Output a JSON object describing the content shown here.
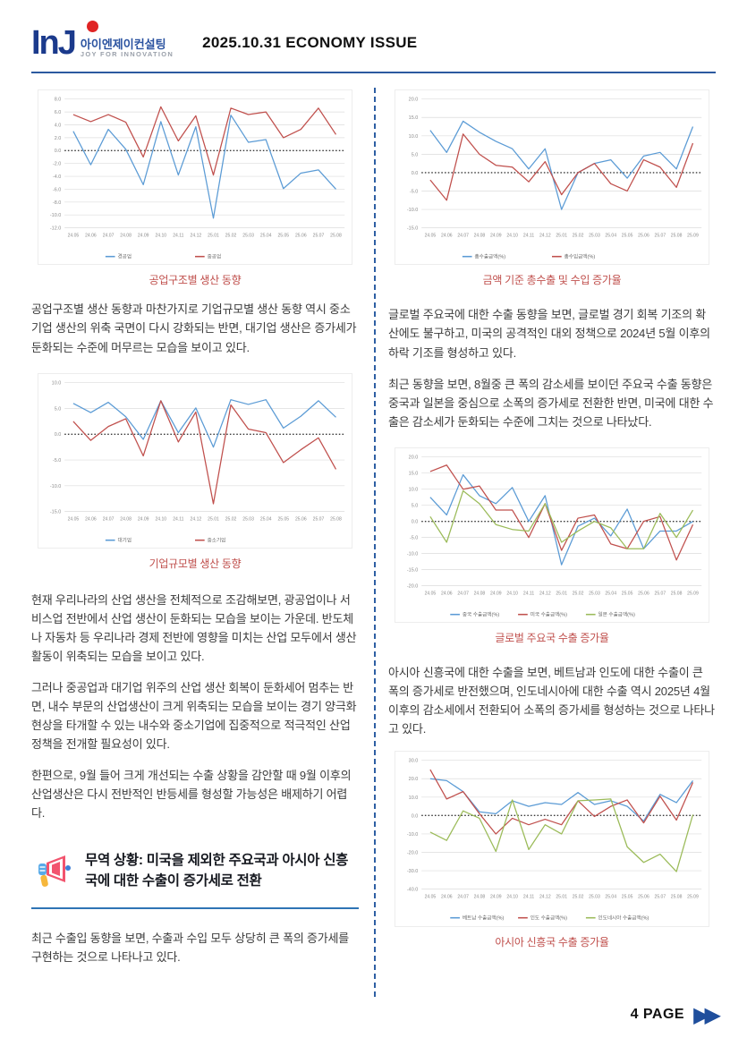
{
  "header": {
    "logo_main": "InJ",
    "logo_korean": "아이엔제이컨설팅",
    "logo_sub": "JOY FOR INNOVATION",
    "issue_title": "2025.10.31 ECONOMY ISSUE"
  },
  "left_column": {
    "chart1_caption": "공업구조별 생산 동향",
    "para1": "공업구조별 생산 동향과 마찬가지로 기업규모별 생산 동향 역시 중소기업 생산의 위축 국면이 다시 강화되는 반면, 대기업 생산은 증가세가 둔화되는 수준에 머무르는 모습을 보이고 있다.",
    "chart2_caption": "기업규모별 생산 동향",
    "para2": "현재 우리나라의 산업 생산을 전체적으로 조감해보면, 광공업이나 서비스업 전반에서 산업 생산이 둔화되는 모습을 보이는 가운데. 반도체나 자동차 등 우리나라 경제 전반에 영향을 미치는 산업 모두에서 생산 활동이 위축되는 모습을 보이고 있다.",
    "para3": "그러나 중공업과 대기업 위주의 산업 생산 회복이 둔화세어 멈추는 반면, 내수 부문의 산업생산이 크게 위축되는 모습을 보이는 경기 양극화 현상을 타개할 수 있는 내수와 중소기업에 집중적으로 적극적인 산업 정책을 전개할 필요성이 있다.",
    "para4": "한편으로, 9월 들어 크게 개선되는 수출 상황을 감안할 때 9월 이후의 산업생산은 다시 전반적인 반등세를 형성할 가능성은 배제하기 어렵다.",
    "callout_title": "무역 상황: 미국을 제외한 주요국과 아시아 신흥국에 대한 수출이 증가세로 전환",
    "para5": "최근 수출입 동향을 보면, 수출과 수입 모두 상당히 큰 폭의 증가세를 구현하는 것으로 나타나고 있다."
  },
  "right_column": {
    "chart3_caption": "금액 기준 총수출 및 수입 증가율",
    "para1": "글로벌 주요국에 대한 수출 동향을 보면, 글로벌 경기 회복 기조의 확산에도 불구하고, 미국의 공격적인 대외 정책으로 2024년 5월 이후의 하락 기조를 형성하고 있다.",
    "para2": "최근 동향을 보면, 8월중 큰 폭의 감소세를 보이던 주요국 수출 동향은 중국과 일본을 중심으로 소폭의 증가세로 전환한 반면, 미국에 대한 수출은 감소세가 둔화되는 수준에 그치는 것으로 나타났다.",
    "chart4_caption": "글로벌 주요국 수출 증가율",
    "para3": "아시아 신흥국에 대한 수출을 보면, 베트남과 인도에 대한 수출이 큰 폭의 증가세로 반전했으며, 인도네시아에 대한 수출 역시 2025년 4월 이후의 감소세에서 전환되어 소폭의 증가세를 형성하는 것으로 나타나고 있다.",
    "chart5_caption": "아시아 신흥국 수출 증가율"
  },
  "footer": {
    "page_label": "4 PAGE",
    "arrows": "▶▶"
  },
  "colors": {
    "accent_red": "#c0504d",
    "header_blue": "#2c5aa0",
    "divider_blue": "#2e5fa3",
    "callout_rule_blue": "#2e74b5",
    "line_blue": "#5b9bd5",
    "line_red": "#c0504d",
    "line_green": "#9bbb59",
    "grid_gray": "#dcdcdc"
  },
  "chart_data": [
    {
      "type": "line",
      "caption": "공업구조별 생산 동향",
      "x": [
        "24.05",
        "24.06",
        "24.07",
        "24.08",
        "24.09",
        "24.10",
        "24.11",
        "24.12",
        "25.01",
        "25.02",
        "25.03",
        "25.04",
        "25.05",
        "25.06",
        "25.07",
        "25.08"
      ],
      "ylim": [
        -12,
        8
      ],
      "ytick_step": 2,
      "zero_line": true,
      "grid": true,
      "legend_position": "bottom",
      "series": [
        {
          "name": "경공업",
          "color": "#5b9bd5",
          "values": [
            3.0,
            -2.2,
            3.3,
            0.2,
            -5.3,
            4.5,
            -3.8,
            3.7,
            -10.5,
            5.5,
            1.3,
            1.7,
            -5.9,
            -3.5,
            -3.0,
            -6.0
          ]
        },
        {
          "name": "중공업",
          "color": "#c0504d",
          "values": [
            5.6,
            4.5,
            5.6,
            4.4,
            -1.0,
            6.8,
            1.5,
            5.4,
            -3.8,
            6.6,
            5.6,
            6.0,
            2.0,
            3.3,
            6.6,
            2.5
          ]
        }
      ]
    },
    {
      "type": "line",
      "caption": "기업규모별 생산 동향",
      "x": [
        "24.05",
        "24.06",
        "24.07",
        "24.08",
        "24.09",
        "24.10",
        "24.11",
        "24.12",
        "25.01",
        "25.02",
        "25.03",
        "25.04",
        "25.05",
        "25.06",
        "25.07",
        "25.08"
      ],
      "ylim": [
        -15,
        10
      ],
      "ytick_step": 5,
      "zero_line": true,
      "grid": true,
      "legend_position": "bottom",
      "series": [
        {
          "name": "대기업",
          "color": "#5b9bd5",
          "values": [
            6.0,
            4.2,
            6.2,
            3.4,
            -1.0,
            6.5,
            0.3,
            5.1,
            -2.5,
            6.7,
            5.8,
            6.7,
            1.2,
            3.5,
            6.5,
            3.3
          ]
        },
        {
          "name": "중소기업",
          "color": "#c0504d",
          "values": [
            2.5,
            -1.2,
            1.5,
            3.0,
            -4.2,
            6.5,
            -1.5,
            4.3,
            -13.5,
            5.7,
            1.0,
            0.3,
            -5.5,
            -3.0,
            -0.7,
            -6.8
          ]
        }
      ]
    },
    {
      "type": "line",
      "caption": "금액 기준 총수출 및 수입 증가율",
      "x": [
        "24.05",
        "24.06",
        "24.07",
        "24.08",
        "24.09",
        "24.10",
        "24.11",
        "24.12",
        "25.01",
        "25.02",
        "25.03",
        "25.04",
        "25.05",
        "25.06",
        "25.07",
        "25.08",
        "25.09"
      ],
      "ylim": [
        -15,
        20
      ],
      "ytick_step": 5,
      "zero_line": true,
      "grid": true,
      "legend_position": "bottom",
      "series": [
        {
          "name": "총수출금액(%)",
          "color": "#5b9bd5",
          "values": [
            11.5,
            5.5,
            14.0,
            11.0,
            8.5,
            6.5,
            1.0,
            6.5,
            -10.0,
            0.0,
            2.5,
            3.5,
            -1.5,
            4.5,
            5.5,
            1.0,
            12.5
          ]
        },
        {
          "name": "총수입금액(%)",
          "color": "#c0504d",
          "values": [
            -2.0,
            -7.5,
            10.5,
            5.0,
            2.0,
            1.5,
            -2.5,
            3.0,
            -6.0,
            0.0,
            2.5,
            -3.0,
            -5.0,
            3.5,
            1.5,
            -4.0,
            8.0
          ]
        }
      ]
    },
    {
      "type": "line",
      "caption": "글로벌 주요국 수출 증가율",
      "x": [
        "24.05",
        "24.06",
        "24.07",
        "24.08",
        "24.09",
        "24.10",
        "24.11",
        "24.12",
        "25.01",
        "25.02",
        "25.03",
        "25.04",
        "25.05",
        "25.06",
        "25.07",
        "25.08",
        "25.09"
      ],
      "ylim": [
        -20,
        20
      ],
      "ytick_step": 5,
      "zero_line": true,
      "grid": true,
      "legend_position": "bottom",
      "series": [
        {
          "name": "중국 수출금액(%)",
          "color": "#5b9bd5",
          "values": [
            7.5,
            2.0,
            14.5,
            8.0,
            5.5,
            10.5,
            0.0,
            8.0,
            -13.5,
            -1.5,
            1.0,
            -4.5,
            3.8,
            -8.5,
            -3.0,
            -3.0,
            0.0
          ]
        },
        {
          "name": "미국 수출금액(%)",
          "color": "#c0504d",
          "values": [
            15.5,
            17.5,
            10.0,
            11.0,
            3.5,
            3.5,
            -5.0,
            5.5,
            -9.0,
            1.0,
            2.0,
            -7.0,
            -8.5,
            0.0,
            1.5,
            -12.0,
            -1.0
          ]
        },
        {
          "name": "일본 수출금액(%)",
          "color": "#9bbb59",
          "values": [
            1.5,
            -6.5,
            9.5,
            5.5,
            -1.0,
            -2.5,
            -3.0,
            5.5,
            -6.5,
            -3.0,
            0.0,
            -2.0,
            -8.5,
            -8.5,
            2.5,
            -5.0,
            3.5
          ]
        }
      ]
    },
    {
      "type": "line",
      "caption": "아시아 신흥국 수출 증가율",
      "x": [
        "24.05",
        "24.06",
        "24.07",
        "24.08",
        "24.09",
        "24.10",
        "24.11",
        "24.12",
        "25.01",
        "25.02",
        "25.03",
        "25.04",
        "25.05",
        "25.06",
        "25.07",
        "25.08",
        "25.09"
      ],
      "ylim": [
        -40,
        30
      ],
      "ytick_step": 10,
      "zero_line": true,
      "grid": true,
      "legend_position": "bottom",
      "series": [
        {
          "name": "베트남 수출금액(%)",
          "color": "#5b9bd5",
          "values": [
            20.0,
            19.0,
            13.0,
            2.0,
            1.0,
            8.0,
            5.0,
            7.0,
            6.0,
            12.5,
            6.0,
            8.0,
            5.0,
            -3.0,
            11.5,
            7.0,
            19.0
          ]
        },
        {
          "name": "인도 수출금액(%)",
          "color": "#c0504d",
          "values": [
            25.0,
            9.0,
            13.0,
            1.0,
            -10.0,
            -1.5,
            -5.0,
            -2.0,
            -5.0,
            8.0,
            -0.5,
            5.0,
            8.5,
            -4.0,
            10.5,
            -2.5,
            18.0
          ]
        },
        {
          "name": "인도네시아 수출금액(%)",
          "color": "#9bbb59",
          "values": [
            -9.0,
            -13.5,
            2.5,
            -1.5,
            -19.5,
            8.5,
            -18.5,
            -5.0,
            -10.0,
            8.0,
            8.5,
            9.0,
            -17.0,
            -25.5,
            -21.0,
            -30.5,
            0.5
          ]
        }
      ]
    }
  ]
}
